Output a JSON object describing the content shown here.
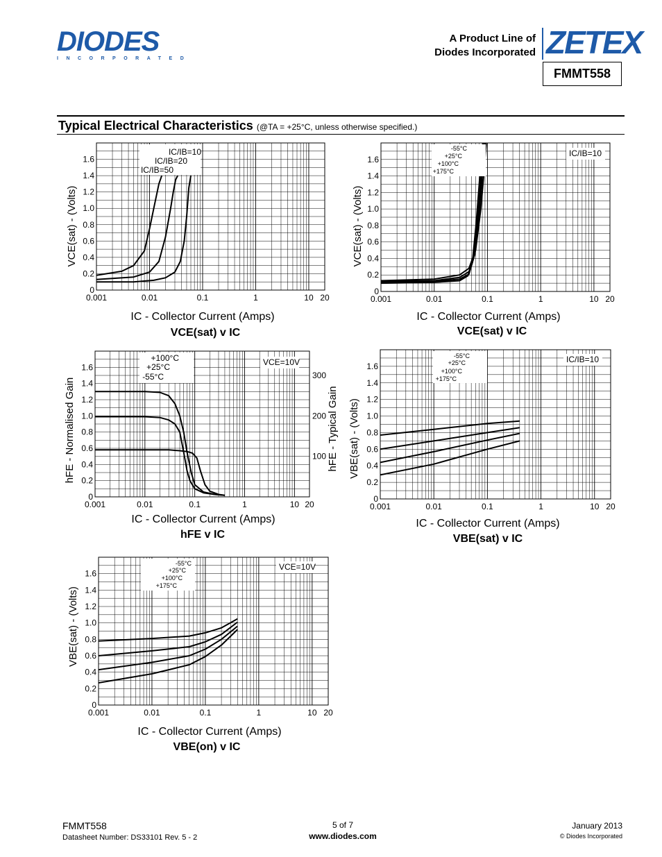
{
  "header": {
    "logo_text": "DIODES",
    "logo_sub": "INCORPORATED",
    "product_line_1": "A Product Line of",
    "product_line_2": "Diodes Incorporated",
    "zetex_logo": "ZETEX",
    "part_number": "FMMT558"
  },
  "section": {
    "title": "Typical Electrical Characteristics",
    "conditions": "(@TA = +25°C, unless otherwise specified.)"
  },
  "footer": {
    "part": "FMMT558",
    "datasheet": "Datasheet Number: DS33101 Rev. 5 - 2",
    "page": "5 of 7",
    "website": "www.diodes.com",
    "date": "January 2013",
    "copyright": "© Diodes Incorporated"
  },
  "chart_data": [
    {
      "type": "line",
      "title": "VCE(sat) v IC",
      "xlabel": "IC - Collector Current (Amps)",
      "ylabel": "VCE(sat) - (Volts)",
      "xscale": "log",
      "xlim": [
        0.001,
        20
      ],
      "ylim": [
        0,
        1.8
      ],
      "xticks": [
        "0.001",
        "0.01",
        "0.1",
        "1",
        "10",
        "20"
      ],
      "yticks": [
        "0",
        "0.2",
        "0.4",
        "0.6",
        "0.8",
        "1.0",
        "1.2",
        "1.4",
        "1.6"
      ],
      "annotations": [
        "IC/IB=10",
        "IC/IB=20",
        "IC/IB=50"
      ],
      "series": [
        {
          "name": "IC/IB=10",
          "x": [
            0.001,
            0.005,
            0.012,
            0.02,
            0.03,
            0.038,
            0.045,
            0.05,
            0.055,
            0.06
          ],
          "y": [
            0.1,
            0.1,
            0.12,
            0.15,
            0.22,
            0.35,
            0.6,
            0.9,
            1.25,
            1.4
          ]
        },
        {
          "name": "IC/IB=20",
          "x": [
            0.001,
            0.005,
            0.01,
            0.015,
            0.02,
            0.025,
            0.028,
            0.031,
            0.034
          ],
          "y": [
            0.13,
            0.16,
            0.22,
            0.35,
            0.65,
            1.0,
            1.2,
            1.35,
            1.4
          ]
        },
        {
          "name": "IC/IB=50",
          "x": [
            0.001,
            0.003,
            0.005,
            0.008,
            0.01,
            0.012,
            0.015,
            0.017
          ],
          "y": [
            0.18,
            0.23,
            0.3,
            0.48,
            0.75,
            1.0,
            1.3,
            1.4
          ]
        }
      ]
    },
    {
      "type": "line",
      "title": "VCE(sat) v IC",
      "xlabel": "IC - Collector Current (Amps)",
      "ylabel": "VCE(sat) - (Volts)",
      "xscale": "log",
      "xlim": [
        0.001,
        20
      ],
      "ylim": [
        0,
        1.8
      ],
      "xticks": [
        "0.001",
        "0.01",
        "0.1",
        "1",
        "10",
        "20"
      ],
      "yticks": [
        "0",
        "0.2",
        "0.4",
        "0.6",
        "0.8",
        "1.0",
        "1.2",
        "1.4",
        "1.6"
      ],
      "annotations": [
        "IC/IB=10",
        "-55°C",
        "+25°C",
        "+100°C",
        "+175°C"
      ],
      "series": [
        {
          "name": "-55°C",
          "x": [
            0.001,
            0.01,
            0.03,
            0.045,
            0.06,
            0.075,
            0.085,
            0.095
          ],
          "y": [
            0.13,
            0.15,
            0.2,
            0.28,
            0.5,
            1.0,
            1.4,
            1.8
          ]
        },
        {
          "name": "+25°C",
          "x": [
            0.001,
            0.01,
            0.03,
            0.045,
            0.058,
            0.07,
            0.08,
            0.09
          ],
          "y": [
            0.12,
            0.13,
            0.17,
            0.24,
            0.45,
            0.95,
            1.4,
            1.8
          ]
        },
        {
          "name": "+100°C",
          "x": [
            0.001,
            0.01,
            0.03,
            0.045,
            0.055,
            0.066,
            0.076,
            0.086
          ],
          "y": [
            0.11,
            0.12,
            0.15,
            0.21,
            0.4,
            0.9,
            1.4,
            1.8
          ]
        },
        {
          "name": "+175°C",
          "x": [
            0.001,
            0.01,
            0.03,
            0.043,
            0.052,
            0.062,
            0.072,
            0.082
          ],
          "y": [
            0.1,
            0.11,
            0.13,
            0.19,
            0.35,
            0.85,
            1.4,
            1.8
          ]
        }
      ]
    },
    {
      "type": "line",
      "title": "hFE v IC",
      "xlabel": "IC - Collector Current (Amps)",
      "ylabel": "hFE - Normalised Gain",
      "y2label": "hFE - Typical Gain",
      "xscale": "log",
      "xlim": [
        0.001,
        20
      ],
      "ylim": [
        0,
        1.8
      ],
      "y2lim": [
        0,
        360
      ],
      "xticks": [
        "0.001",
        "0.01",
        "0.1",
        "1",
        "10",
        "20"
      ],
      "yticks": [
        "0",
        "0.2",
        "0.4",
        "0.6",
        "0.8",
        "1.0",
        "1.2",
        "1.4",
        "1.6"
      ],
      "y2ticks": [
        "100",
        "200",
        "300"
      ],
      "annotations": [
        "VCE=10V",
        "+100°C",
        "+25°C",
        "-55°C"
      ],
      "series": [
        {
          "name": "+100°C",
          "x": [
            0.001,
            0.01,
            0.02,
            0.03,
            0.04,
            0.05,
            0.06,
            0.07,
            0.085,
            0.1,
            0.15,
            0.25,
            0.4
          ],
          "y": [
            1.3,
            1.3,
            1.29,
            1.25,
            1.15,
            1.0,
            0.8,
            0.55,
            0.3,
            0.15,
            0.06,
            0.03,
            0.02
          ]
        },
        {
          "name": "+25°C",
          "x": [
            0.001,
            0.01,
            0.02,
            0.03,
            0.04,
            0.05,
            0.06,
            0.07,
            0.08,
            0.1,
            0.15,
            0.25,
            0.4
          ],
          "y": [
            0.99,
            0.99,
            0.98,
            0.95,
            0.9,
            0.8,
            0.55,
            0.32,
            0.2,
            0.1,
            0.05,
            0.03,
            0.02
          ]
        },
        {
          "name": "-55°C",
          "x": [
            0.001,
            0.01,
            0.03,
            0.05,
            0.07,
            0.09,
            0.11,
            0.13,
            0.16,
            0.2,
            0.3,
            0.4
          ],
          "y": [
            0.58,
            0.58,
            0.58,
            0.57,
            0.56,
            0.54,
            0.48,
            0.32,
            0.15,
            0.07,
            0.03,
            0.02
          ]
        }
      ]
    },
    {
      "type": "line",
      "title": "VBE(sat) v IC",
      "xlabel": "IC - Collector Current (Amps)",
      "ylabel": "VBE(sat) - (Volts)",
      "xscale": "log",
      "xlim": [
        0.001,
        20
      ],
      "ylim": [
        0,
        1.8
      ],
      "xticks": [
        "0.001",
        "0.01",
        "0.1",
        "1",
        "10",
        "20"
      ],
      "yticks": [
        "0",
        "0.2",
        "0.4",
        "0.6",
        "0.8",
        "1.0",
        "1.2",
        "1.4",
        "1.6"
      ],
      "annotations": [
        "IC/IB=10",
        "-55°C",
        "+25°C",
        "+100°C",
        "+175°C"
      ],
      "series": [
        {
          "name": "-55°C",
          "x": [
            0.001,
            0.01,
            0.1,
            0.4
          ],
          "y": [
            0.77,
            0.84,
            0.91,
            0.94
          ]
        },
        {
          "name": "+25°C",
          "x": [
            0.001,
            0.01,
            0.1,
            0.4
          ],
          "y": [
            0.6,
            0.7,
            0.8,
            0.86
          ]
        },
        {
          "name": "+100°C",
          "x": [
            0.001,
            0.01,
            0.1,
            0.4
          ],
          "y": [
            0.44,
            0.57,
            0.71,
            0.79
          ]
        },
        {
          "name": "+175°C",
          "x": [
            0.001,
            0.01,
            0.1,
            0.4
          ],
          "y": [
            0.29,
            0.42,
            0.6,
            0.7
          ]
        }
      ]
    },
    {
      "type": "line",
      "title": "VBE(on) v IC",
      "xlabel": "IC - Collector Current (Amps)",
      "ylabel": "VBE(sat) - (Volts)",
      "xscale": "log",
      "xlim": [
        0.001,
        20
      ],
      "ylim": [
        0,
        1.8
      ],
      "xticks": [
        "0.001",
        "0.01",
        "0.1",
        "1",
        "10",
        "20"
      ],
      "yticks": [
        "0",
        "0.2",
        "0.4",
        "0.6",
        "0.8",
        "1.0",
        "1.2",
        "1.4",
        "1.6"
      ],
      "annotations": [
        "VCE=10V",
        "-55°C",
        "+25°C",
        "+100°C",
        "+175°C"
      ],
      "series": [
        {
          "name": "-55°C",
          "x": [
            0.001,
            0.01,
            0.05,
            0.1,
            0.2,
            0.4
          ],
          "y": [
            0.78,
            0.81,
            0.84,
            0.88,
            0.94,
            1.05
          ]
        },
        {
          "name": "+25°C",
          "x": [
            0.001,
            0.01,
            0.05,
            0.1,
            0.2,
            0.4
          ],
          "y": [
            0.6,
            0.66,
            0.71,
            0.77,
            0.86,
            1.01
          ]
        },
        {
          "name": "+100°C",
          "x": [
            0.001,
            0.01,
            0.05,
            0.1,
            0.2,
            0.4
          ],
          "y": [
            0.43,
            0.52,
            0.6,
            0.68,
            0.8,
            0.96
          ]
        },
        {
          "name": "+175°C",
          "x": [
            0.001,
            0.01,
            0.05,
            0.1,
            0.2,
            0.4
          ],
          "y": [
            0.27,
            0.38,
            0.49,
            0.59,
            0.73,
            0.92
          ]
        }
      ]
    }
  ]
}
